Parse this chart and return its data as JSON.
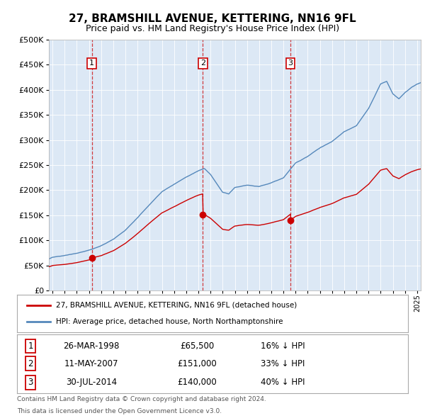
{
  "title": "27, BRAMSHILL AVENUE, KETTERING, NN16 9FL",
  "subtitle": "Price paid vs. HM Land Registry's House Price Index (HPI)",
  "legend_label_red": "27, BRAMSHILL AVENUE, KETTERING, NN16 9FL (detached house)",
  "legend_label_blue": "HPI: Average price, detached house, North Northamptonshire",
  "footer_line1": "Contains HM Land Registry data © Crown copyright and database right 2024.",
  "footer_line2": "This data is licensed under the Open Government Licence v3.0.",
  "red_color": "#cc0000",
  "blue_color": "#5588bb",
  "plot_bg": "#dce8f5",
  "ylim": [
    0,
    500000
  ],
  "yticks": [
    0,
    50000,
    100000,
    150000,
    200000,
    250000,
    300000,
    350000,
    400000,
    450000,
    500000
  ],
  "xlim_start": 1994.7,
  "xlim_end": 2025.3,
  "sale_years": [
    1998.23,
    2007.37,
    2014.58
  ],
  "sale_prices": [
    65500,
    151000,
    140000
  ],
  "table_rows": [
    {
      "num": "1",
      "date": "26-MAR-1998",
      "price": "£65,500",
      "pct": "16% ↓ HPI"
    },
    {
      "num": "2",
      "date": "11-MAY-2007",
      "price": "£151,000",
      "pct": "33% ↓ HPI"
    },
    {
      "num": "3",
      "date": "30-JUL-2014",
      "price": "£140,000",
      "pct": "40% ↓ HPI"
    }
  ]
}
